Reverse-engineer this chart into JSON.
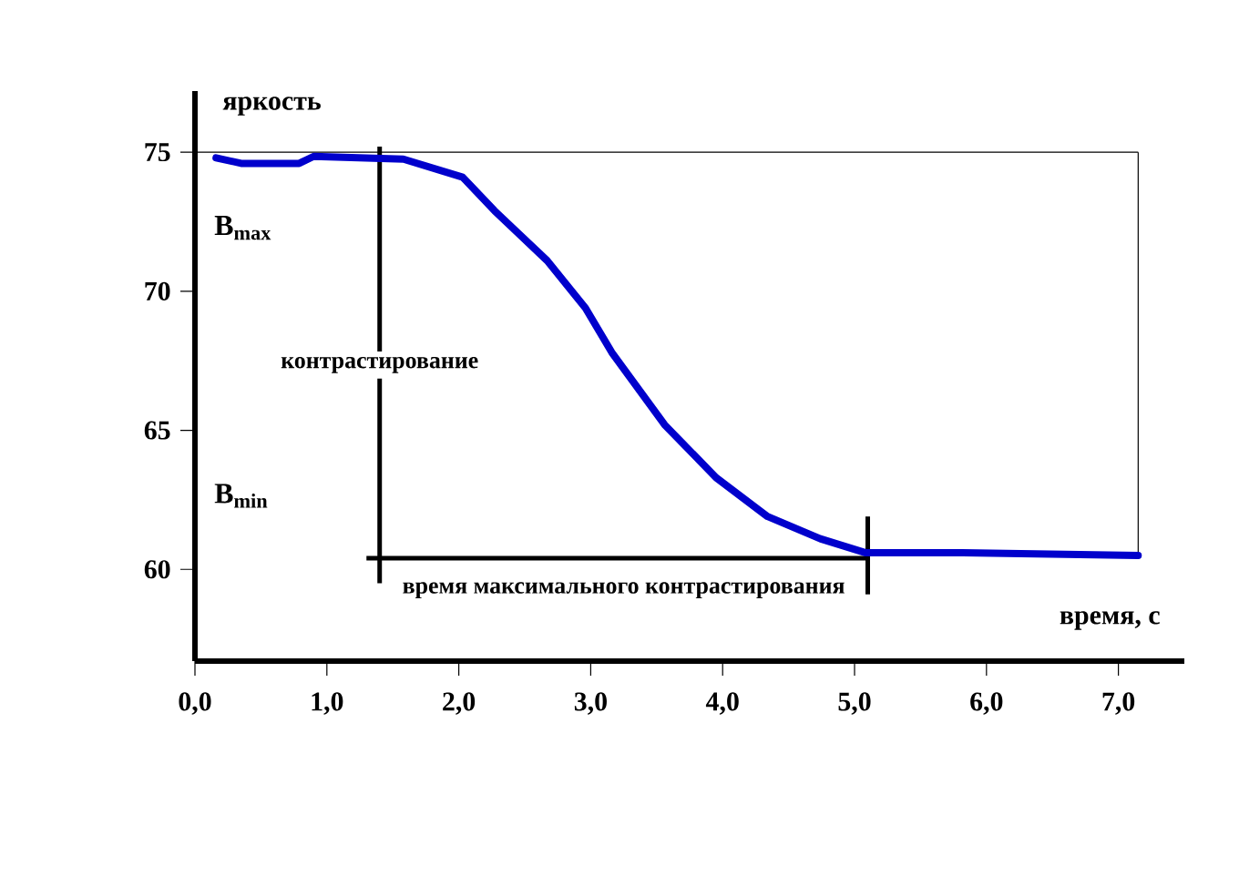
{
  "chart_data": {
    "type": "line",
    "xlabel": "время, с",
    "ylabel": "яркость",
    "x": [
      0.16,
      0.35,
      0.79,
      0.9,
      1.58,
      2.03,
      2.27,
      2.67,
      2.96,
      3.16,
      3.56,
      3.95,
      4.34,
      4.74,
      5.08,
      5.82,
      7.15
    ],
    "series": [
      {
        "color": "#0000cc",
        "values": [
          74.8,
          74.6,
          74.6,
          74.85,
          74.75,
          74.1,
          72.9,
          71.1,
          69.4,
          67.8,
          65.2,
          63.3,
          61.9,
          61.1,
          60.6,
          60.6,
          60.5
        ]
      }
    ],
    "xlim": [
      0,
      7.5
    ],
    "ylim": [
      56.7,
      77.2
    ],
    "xticks": [
      {
        "value": 0,
        "label": "0,0"
      },
      {
        "value": 1,
        "label": "1,0"
      },
      {
        "value": 2,
        "label": "2,0"
      },
      {
        "value": 3,
        "label": "3,0"
      },
      {
        "value": 4,
        "label": "4,0"
      },
      {
        "value": 5,
        "label": "5,0"
      },
      {
        "value": 6,
        "label": "6,0"
      },
      {
        "value": 7,
        "label": "7,0"
      }
    ],
    "yticks": [
      60,
      65,
      70,
      75
    ],
    "ref_lines": [
      {
        "axis": "y",
        "value": 75
      },
      {
        "axis": "y",
        "value": 60.4,
        "label": "время максимального контрастирования"
      },
      {
        "axis": "x",
        "value": 1.4,
        "label": "контрастирование"
      },
      {
        "axis": "x",
        "value": 5.1
      },
      {
        "axis": "x",
        "value": 7.15
      }
    ],
    "annotations": [
      "B$_{max}$",
      "B$_{min}$"
    ],
    "grid": false
  }
}
